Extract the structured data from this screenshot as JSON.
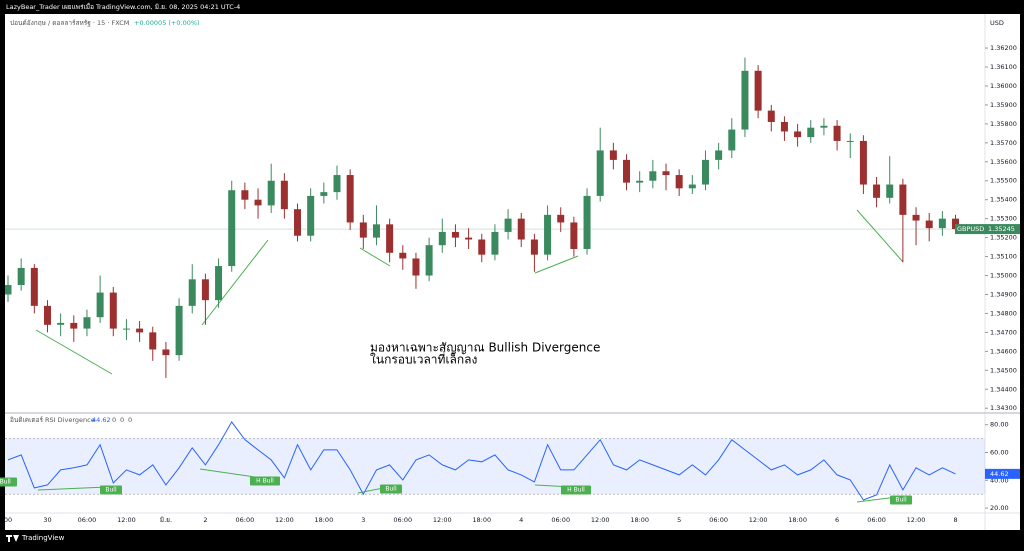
{
  "header": {
    "text": "LazyBear_Trader เผยแพร่เมื่อ TradingView.com, มิ.ย. 08, 2025 04:21 UTC-4"
  },
  "footer": {
    "brand": "TradingView"
  },
  "chart_data": [
    {
      "type": "candlestick",
      "subtitle": "ปอนด์อังกฤษ / ดอลลาร์สหรัฐ · 15 · FXCM",
      "change": "+0.00005 (+0.00%)",
      "currency": "USD",
      "symbol": "GBPUSD",
      "annotation": [
        "มองหาเฉพาะสัญญาณ Bullish Divergence",
        "ในกรอบเวลาที่เล็กลง"
      ],
      "up_color": "#3b8a5f",
      "down_color": "#9c2f2f",
      "signal_color": "#4caf50",
      "categories": [
        "00",
        null,
        null,
        "30",
        null,
        null,
        "06:00",
        null,
        null,
        "12:00",
        null,
        null,
        "มิ.ย.",
        null,
        null,
        "2",
        null,
        null,
        "06:00",
        null,
        null,
        "12:00",
        null,
        null,
        "18:00",
        null,
        null,
        "3",
        null,
        null,
        "06:00",
        null,
        null,
        "12:00",
        null,
        null,
        "18:00",
        null,
        null,
        "4",
        null,
        null,
        "06:00",
        null,
        null,
        "12:00",
        null,
        null,
        "18:00",
        null,
        null,
        "5",
        null,
        null,
        "06:00",
        null,
        null,
        "12:00",
        null,
        null,
        "18:00",
        null,
        null,
        "6",
        null,
        null,
        "06:00",
        null,
        null,
        "12:00",
        null,
        null,
        "8"
      ],
      "open": [
        1.349,
        1.3495,
        1.3504,
        1.3484,
        1.3474,
        1.3475,
        1.3472,
        1.3478,
        1.3491,
        1.3472,
        1.3472,
        1.347,
        1.3461,
        1.3458,
        1.3484,
        1.3498,
        1.3487,
        1.3505,
        1.3545,
        1.354,
        1.3537,
        1.355,
        1.3535,
        1.3521,
        1.3542,
        1.3544,
        1.3553,
        1.3528,
        1.352,
        1.3527,
        1.3512,
        1.3509,
        1.35,
        1.3516,
        1.3523,
        1.352,
        1.3519,
        1.3511,
        1.3523,
        1.353,
        1.3519,
        1.3511,
        1.3532,
        1.3528,
        1.3514,
        1.3542,
        1.3566,
        1.3561,
        1.3549,
        1.355,
        1.3555,
        1.3553,
        1.3546,
        1.3548,
        1.3561,
        1.3566,
        1.3577,
        1.3608,
        1.3587,
        1.3581,
        1.3576,
        1.3573,
        1.3578,
        1.3579,
        1.3571,
        1.3571,
        1.3548,
        1.3541,
        1.3548,
        1.3532,
        1.3529,
        1.3525,
        1.353
      ],
      "high": [
        1.35,
        1.3509,
        1.3506,
        1.3487,
        1.348,
        1.3479,
        1.3482,
        1.35,
        1.3494,
        1.3477,
        1.3476,
        1.3473,
        1.3465,
        1.3488,
        1.3506,
        1.3501,
        1.3509,
        1.355,
        1.3549,
        1.3546,
        1.3559,
        1.3554,
        1.3538,
        1.3546,
        1.3549,
        1.3558,
        1.3556,
        1.3532,
        1.3537,
        1.353,
        1.3516,
        1.3512,
        1.352,
        1.353,
        1.3527,
        1.3525,
        1.3522,
        1.3527,
        1.3535,
        1.3533,
        1.3522,
        1.3537,
        1.3536,
        1.3531,
        1.3546,
        1.3578,
        1.357,
        1.3564,
        1.3555,
        1.3561,
        1.3559,
        1.3556,
        1.3553,
        1.3566,
        1.357,
        1.3583,
        1.3615,
        1.3611,
        1.359,
        1.3584,
        1.358,
        1.3582,
        1.3583,
        1.3582,
        1.3575,
        1.3574,
        1.3552,
        1.3563,
        1.3551,
        1.3536,
        1.3533,
        1.3534,
        1.3532
      ],
      "low": [
        1.3486,
        1.3492,
        1.348,
        1.347,
        1.3468,
        1.3465,
        1.3468,
        1.3475,
        1.3468,
        1.3466,
        1.3465,
        1.3455,
        1.3446,
        1.3455,
        1.348,
        1.3474,
        1.3483,
        1.3502,
        1.3535,
        1.353,
        1.3533,
        1.353,
        1.3518,
        1.3518,
        1.3538,
        1.354,
        1.3524,
        1.3514,
        1.3516,
        1.3507,
        1.3503,
        1.3493,
        1.3497,
        1.3512,
        1.3515,
        1.3514,
        1.3507,
        1.3508,
        1.3519,
        1.3515,
        1.3502,
        1.3508,
        1.3523,
        1.351,
        1.3511,
        1.3539,
        1.3556,
        1.3545,
        1.3544,
        1.3546,
        1.3545,
        1.3542,
        1.3543,
        1.3545,
        1.3556,
        1.3562,
        1.3573,
        1.3583,
        1.3576,
        1.3571,
        1.3568,
        1.357,
        1.3574,
        1.3566,
        1.3562,
        1.3543,
        1.3536,
        1.3538,
        1.3507,
        1.3516,
        1.3518,
        1.3521,
        1.3522
      ],
      "close": [
        1.3495,
        1.3504,
        1.3484,
        1.3474,
        1.3475,
        1.3472,
        1.3478,
        1.3491,
        1.3472,
        1.3472,
        1.347,
        1.3461,
        1.3458,
        1.3484,
        1.3498,
        1.3487,
        1.3505,
        1.3545,
        1.354,
        1.3537,
        1.355,
        1.3535,
        1.3521,
        1.3542,
        1.3544,
        1.3553,
        1.3528,
        1.352,
        1.3527,
        1.3512,
        1.3509,
        1.35,
        1.3516,
        1.3523,
        1.352,
        1.3519,
        1.3511,
        1.3523,
        1.353,
        1.3519,
        1.3511,
        1.3532,
        1.3528,
        1.3514,
        1.3542,
        1.3566,
        1.3561,
        1.3549,
        1.355,
        1.3555,
        1.3553,
        1.3546,
        1.3548,
        1.3561,
        1.3566,
        1.3577,
        1.3608,
        1.3587,
        1.3581,
        1.3576,
        1.3573,
        1.3578,
        1.3579,
        1.3571,
        1.3571,
        1.3548,
        1.3541,
        1.3548,
        1.3532,
        1.3529,
        1.3525,
        1.353,
        1.35245
      ],
      "ylim": [
        1.3428,
        1.3629
      ],
      "yticks": [
        {
          "value": 1.343,
          "label": "1.34300"
        },
        {
          "value": 1.344,
          "label": "1.34400"
        },
        {
          "value": 1.345,
          "label": "1.34500"
        },
        {
          "value": 1.346,
          "label": "1.34600"
        },
        {
          "value": 1.347,
          "label": "1.34700"
        },
        {
          "value": 1.348,
          "label": "1.34800"
        },
        {
          "value": 1.349,
          "label": "1.34900"
        },
        {
          "value": 1.35,
          "label": "1.35000"
        },
        {
          "value": 1.351,
          "label": "1.35100"
        },
        {
          "value": 1.352,
          "label": "1.35200"
        },
        {
          "value": 1.353,
          "label": "1.35300"
        },
        {
          "value": 1.354,
          "label": "1.35400"
        },
        {
          "value": 1.355,
          "label": "1.35500"
        },
        {
          "value": 1.356,
          "label": "1.35600"
        },
        {
          "value": 1.357,
          "label": "1.35700"
        },
        {
          "value": 1.358,
          "label": "1.35800"
        },
        {
          "value": 1.359,
          "label": "1.35900"
        },
        {
          "value": 1.36,
          "label": "1.36000"
        },
        {
          "value": 1.361,
          "label": "1.36100"
        },
        {
          "value": 1.362,
          "label": "1.36200"
        }
      ],
      "grid": false
    },
    {
      "type": "line",
      "title": "อินดิเคเตอร์ RSI Divergence",
      "header_values": [
        0,
        0,
        0
      ],
      "color": "#2962ff",
      "band": [
        30,
        70
      ],
      "band_color": "#2962ff",
      "signals": [
        "H Bull",
        "Bull",
        "H Bull",
        "Bull",
        "H Bull",
        "Bull"
      ],
      "values": [
        54.7,
        58.3,
        34.5,
        36.7,
        47.5,
        49.0,
        51.1,
        65.6,
        38.1,
        47.5,
        43.9,
        51.1,
        36.7,
        49.0,
        63.4,
        51.1,
        65.6,
        82.0,
        69.2,
        61.9,
        54.7,
        41.7,
        65.6,
        47.5,
        61.9,
        61.9,
        47.5,
        30.0,
        47.5,
        51.1,
        40.3,
        54.7,
        58.3,
        51.1,
        47.5,
        54.7,
        53.3,
        58.3,
        47.5,
        43.9,
        38.8,
        65.6,
        47.5,
        47.5,
        58.3,
        69.2,
        51.1,
        47.5,
        54.7,
        51.1,
        47.5,
        43.9,
        51.1,
        43.9,
        54.7,
        69.2,
        61.9,
        54.7,
        47.5,
        51.1,
        43.9,
        47.5,
        54.7,
        43.9,
        40.3,
        25.8,
        29.5,
        51.1,
        33.1,
        49.0,
        43.9,
        49.0,
        44.62
      ],
      "ylim": [
        15,
        87
      ],
      "yticks": [
        {
          "value": 20,
          "label": "20.00"
        },
        {
          "value": 40,
          "label": "40.00"
        },
        {
          "value": 60,
          "label": "60.00"
        },
        {
          "value": 80,
          "label": "80.00"
        }
      ]
    }
  ]
}
